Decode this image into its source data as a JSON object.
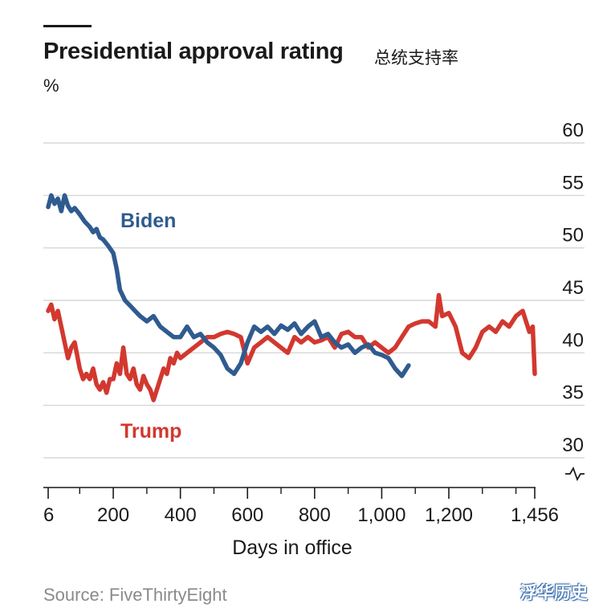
{
  "header": {
    "title": "Presidential approval rating",
    "subtitle_cn": "总统支持率",
    "unit": "%"
  },
  "footer": {
    "source": "Source: FiveThirtyEight",
    "watermark": "浮华历史"
  },
  "colors": {
    "biden": "#2f5b8f",
    "trump": "#d2382f",
    "grid": "#cfcfcf",
    "axis": "#1a1a1a"
  },
  "chart_data": {
    "type": "line",
    "xlabel": "Days in office",
    "ylabel": "%",
    "xlim": [
      6,
      1456
    ],
    "ylim": [
      28,
      62
    ],
    "x_ticks": [
      6,
      200,
      400,
      600,
      800,
      1000,
      1200,
      1456
    ],
    "x_tick_labels": [
      "6",
      "200",
      "400",
      "600",
      "800",
      "1,000",
      "1,200",
      "1,456"
    ],
    "y_ticks": [
      30,
      35,
      40,
      45,
      50,
      55,
      60
    ],
    "y_tick_labels": [
      "30",
      "35",
      "40",
      "45",
      "50",
      "55",
      "60"
    ],
    "axis_break": true,
    "grid": true,
    "series": [
      {
        "name": "Biden",
        "color": "#2f5b8f",
        "x": [
          6,
          15,
          25,
          35,
          45,
          55,
          65,
          75,
          85,
          100,
          115,
          130,
          140,
          150,
          160,
          170,
          185,
          200,
          210,
          220,
          235,
          250,
          265,
          280,
          300,
          320,
          340,
          360,
          380,
          400,
          420,
          440,
          460,
          480,
          500,
          520,
          540,
          560,
          580,
          600,
          620,
          640,
          660,
          680,
          700,
          720,
          740,
          760,
          780,
          800,
          820,
          840,
          860,
          880,
          900,
          920,
          940,
          960,
          980,
          1000,
          1020,
          1040,
          1060,
          1080
        ],
        "y": [
          53.9,
          55.0,
          54.2,
          54.7,
          53.5,
          55.0,
          54.0,
          53.5,
          53.8,
          53.2,
          52.5,
          52.0,
          51.5,
          51.8,
          51.0,
          50.8,
          50.2,
          49.5,
          48.0,
          46.0,
          45.0,
          44.5,
          44.0,
          43.5,
          43.0,
          43.5,
          42.5,
          42.0,
          41.5,
          41.5,
          42.5,
          41.5,
          41.8,
          41.0,
          40.5,
          39.8,
          38.5,
          38.0,
          39.0,
          41.0,
          42.5,
          42.0,
          42.5,
          41.8,
          42.6,
          42.2,
          42.8,
          41.8,
          42.5,
          43.0,
          41.5,
          41.8,
          41.0,
          40.5,
          40.8,
          40.0,
          40.5,
          40.8,
          40.0,
          39.8,
          39.5,
          38.5,
          37.8,
          38.8
        ]
      },
      {
        "name": "Trump",
        "color": "#d2382f",
        "x": [
          6,
          15,
          25,
          35,
          45,
          55,
          65,
          75,
          85,
          100,
          110,
          120,
          130,
          140,
          150,
          160,
          170,
          180,
          190,
          200,
          210,
          220,
          230,
          240,
          250,
          260,
          270,
          280,
          290,
          300,
          310,
          320,
          330,
          340,
          350,
          360,
          370,
          380,
          390,
          400,
          420,
          440,
          460,
          480,
          500,
          520,
          540,
          560,
          580,
          600,
          620,
          640,
          660,
          680,
          700,
          720,
          740,
          760,
          780,
          800,
          820,
          840,
          860,
          880,
          900,
          920,
          940,
          960,
          980,
          1000,
          1020,
          1040,
          1060,
          1080,
          1100,
          1120,
          1140,
          1160,
          1170,
          1180,
          1200,
          1220,
          1240,
          1260,
          1280,
          1300,
          1320,
          1340,
          1360,
          1380,
          1400,
          1420,
          1430,
          1440,
          1450,
          1456
        ],
        "y": [
          44.0,
          44.6,
          43.2,
          44.0,
          42.5,
          41.0,
          39.5,
          40.5,
          41.0,
          38.5,
          37.5,
          38.0,
          37.5,
          38.5,
          37.0,
          36.5,
          37.2,
          36.2,
          37.5,
          37.5,
          39.0,
          38.0,
          40.5,
          38.0,
          37.5,
          38.5,
          37.0,
          36.5,
          37.8,
          37.0,
          36.5,
          35.5,
          36.5,
          37.5,
          38.5,
          38.0,
          39.5,
          39.0,
          40.0,
          39.5,
          40.0,
          40.5,
          41.0,
          41.5,
          41.5,
          41.8,
          42.0,
          41.8,
          41.5,
          39.0,
          40.5,
          41.0,
          41.5,
          41.0,
          40.5,
          40.0,
          41.5,
          41.0,
          41.5,
          41.0,
          41.2,
          41.5,
          40.5,
          41.8,
          42.0,
          41.5,
          41.5,
          40.5,
          41.0,
          40.5,
          40.0,
          40.5,
          41.5,
          42.5,
          42.8,
          43.0,
          43.0,
          42.5,
          45.5,
          43.5,
          43.8,
          42.5,
          40.0,
          39.5,
          40.5,
          42.0,
          42.5,
          42.0,
          43.0,
          42.5,
          43.5,
          44.0,
          43.0,
          42.0,
          42.5,
          38.0
        ]
      }
    ]
  }
}
